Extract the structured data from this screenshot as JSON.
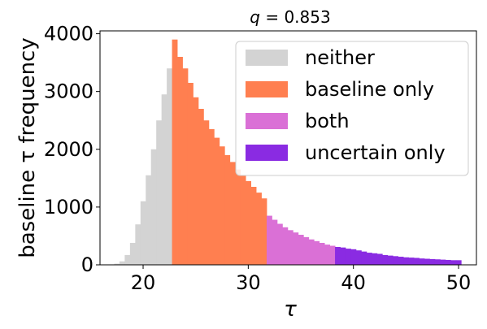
{
  "chart_data": {
    "type": "bar",
    "title": "q = 0.853",
    "title_prefix": "q",
    "title_value": "0.853",
    "xlabel": "τ",
    "ylabel": "baseline τ frequency",
    "xlim": [
      15.9,
      51.7
    ],
    "ylim": [
      0,
      4050
    ],
    "xticks": [
      20,
      30,
      40,
      50
    ],
    "yticks": [
      0,
      1000,
      2000,
      3000,
      4000
    ],
    "bin_start": 17.25,
    "bin_width": 0.5,
    "legend_position": "upper right",
    "series": [
      {
        "name": "neither",
        "color": "#d3d3d3",
        "x_range": [
          17.25,
          22.75
        ],
        "values": [
          20,
          60,
          170,
          380,
          700,
          1100,
          1550,
          2000,
          2500,
          2950,
          3400
        ]
      },
      {
        "name": "baseline only",
        "color": "#ff7f50",
        "x_range": [
          22.75,
          31.75
        ],
        "values": [
          3900,
          3600,
          3400,
          3150,
          2900,
          2700,
          2500,
          2350,
          2200,
          2050,
          1900,
          1780,
          1650,
          1550,
          1450,
          1350,
          1250,
          1150
        ]
      },
      {
        "name": "both",
        "color": "#da70d6",
        "x_range": [
          31.75,
          38.25
        ],
        "values": [
          850,
          780,
          710,
          650,
          600,
          560,
          520,
          480,
          440,
          410,
          380,
          350,
          330
        ]
      },
      {
        "name": "uncertain only",
        "color": "#8a2be2",
        "x_range": [
          38.25,
          50.25
        ],
        "values": [
          310,
          300,
          280,
          270,
          250,
          230,
          210,
          200,
          190,
          170,
          160,
          150,
          140,
          130,
          125,
          120,
          110,
          105,
          100,
          95,
          90,
          85,
          80,
          80
        ]
      }
    ]
  }
}
